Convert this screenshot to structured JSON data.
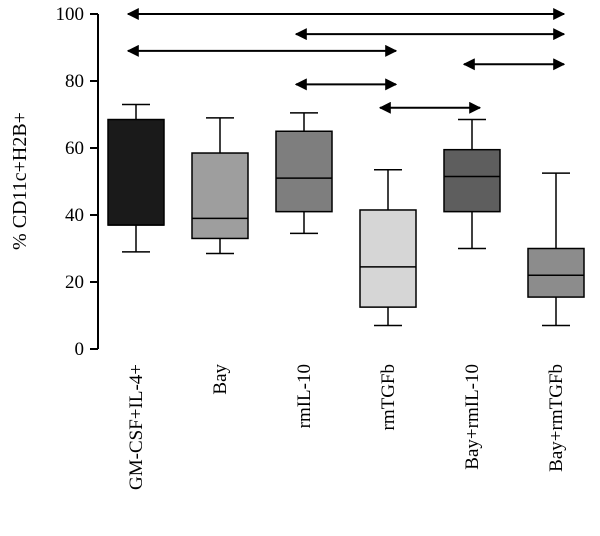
{
  "chart_data": {
    "type": "box",
    "title": "",
    "xlabel": "",
    "ylabel": "% CD11c+H2B+",
    "ylim": [
      0,
      100
    ],
    "yticks": [
      0,
      20,
      40,
      60,
      80,
      100
    ],
    "categories": [
      "GM-CSF+IL-4+",
      "Bay",
      "rmIL-10",
      "rmTGFb",
      "Bay+rmIL-10",
      "Bay+rmTGFb"
    ],
    "boxes": [
      {
        "category": "GM-CSF+IL-4+",
        "min": 29,
        "q1": 37,
        "median": 37,
        "q3": 68.5,
        "max": 73,
        "color": "#1a1a1a"
      },
      {
        "category": "Bay",
        "min": 28.5,
        "q1": 33,
        "median": 39,
        "q3": 58.5,
        "max": 69,
        "color": "#9e9e9e"
      },
      {
        "category": "rmIL-10",
        "min": 34.5,
        "q1": 41,
        "median": 51,
        "q3": 65,
        "max": 70.5,
        "color": "#7e7e7e"
      },
      {
        "category": "rmTGFb",
        "min": 7,
        "q1": 12.5,
        "median": 24.5,
        "q3": 41.5,
        "max": 53.5,
        "color": "#d6d6d6"
      },
      {
        "category": "Bay+rmIL-10",
        "min": 30,
        "q1": 41,
        "median": 51.5,
        "q3": 59.5,
        "max": 68.5,
        "color": "#5e5e5e"
      },
      {
        "category": "Bay+rmTGFb",
        "min": 7,
        "q1": 15.5,
        "median": 22,
        "q3": 30,
        "max": 52.5,
        "color": "#8c8c8c"
      }
    ],
    "comparisons": [
      {
        "from": "GM-CSF+IL-4+",
        "to": "Bay+rmTGFb",
        "y": 100
      },
      {
        "from": "rmIL-10",
        "to": "Bay+rmTGFb",
        "y": 94
      },
      {
        "from": "GM-CSF+IL-4+",
        "to": "rmTGFb",
        "y": 89
      },
      {
        "from": "Bay+rmIL-10",
        "to": "Bay+rmTGFb",
        "y": 85
      },
      {
        "from": "rmIL-10",
        "to": "rmTGFb",
        "y": 79
      },
      {
        "from": "rmTGFb",
        "to": "Bay+rmIL-10",
        "y": 72
      }
    ]
  }
}
